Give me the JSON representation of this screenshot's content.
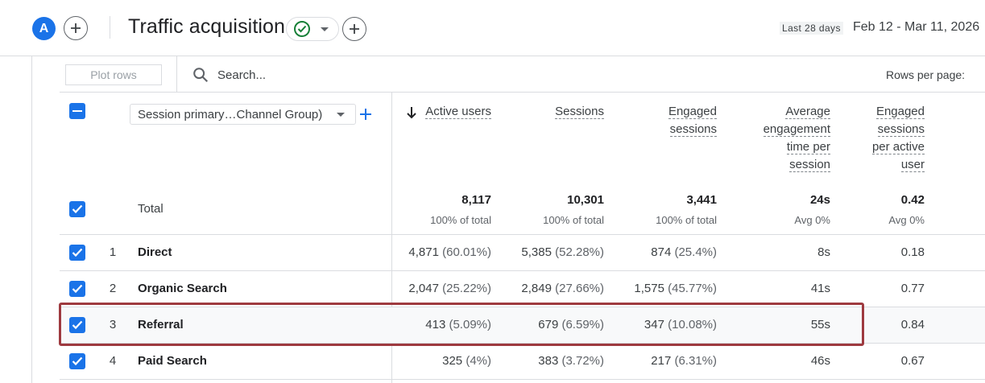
{
  "header": {
    "avatar_letter": "A",
    "title": "Traffic acquisition",
    "date_tag": "Last 28 days",
    "date_range": "Feb 12 - Mar 11, 2026"
  },
  "toolbar": {
    "plot_rows_label": "Plot rows",
    "search_placeholder": "Search...",
    "rows_per_page_label": "Rows per page:"
  },
  "table": {
    "dimension_select": "Session primary…Channel Group)",
    "columns": [
      {
        "line1": "Active users",
        "line2": "",
        "line3": "",
        "line4": ""
      },
      {
        "line1": "Sessions",
        "line2": "",
        "line3": "",
        "line4": ""
      },
      {
        "line1": "Engaged",
        "line2": "sessions",
        "line3": "",
        "line4": ""
      },
      {
        "line1": "Average",
        "line2": "engagement",
        "line3": "time per",
        "line4": "session"
      },
      {
        "line1": "Engaged",
        "line2": "sessions",
        "line3": "per active",
        "line4": "user"
      }
    ],
    "total": {
      "label": "Total",
      "values": [
        "8,117",
        "10,301",
        "3,441",
        "24s",
        "0.42"
      ],
      "subs": [
        "100% of total",
        "100% of total",
        "100% of total",
        "Avg 0%",
        "Avg 0%"
      ]
    },
    "rows": [
      {
        "num": "1",
        "label": "Direct",
        "c0": "4,871",
        "p0": "(60.01%)",
        "c1": "5,385",
        "p1": "(52.28%)",
        "c2": "874",
        "p2": "(25.4%)",
        "c3": "8s",
        "c4": "0.18"
      },
      {
        "num": "2",
        "label": "Organic Search",
        "c0": "2,047",
        "p0": "(25.22%)",
        "c1": "2,849",
        "p1": "(27.66%)",
        "c2": "1,575",
        "p2": "(45.77%)",
        "c3": "41s",
        "c4": "0.77"
      },
      {
        "num": "3",
        "label": "Referral",
        "c0": "413",
        "p0": "(5.09%)",
        "c1": "679",
        "p1": "(6.59%)",
        "c2": "347",
        "p2": "(10.08%)",
        "c3": "55s",
        "c4": "0.84"
      },
      {
        "num": "4",
        "label": "Paid Search",
        "c0": "325",
        "p0": "(4%)",
        "c1": "383",
        "p1": "(3.72%)",
        "c2": "217",
        "p2": "(6.31%)",
        "c3": "46s",
        "c4": "0.67"
      }
    ]
  },
  "colors": {
    "accent": "#1a73e8",
    "check_green": "#188038",
    "highlight": "#9e3a3f"
  }
}
